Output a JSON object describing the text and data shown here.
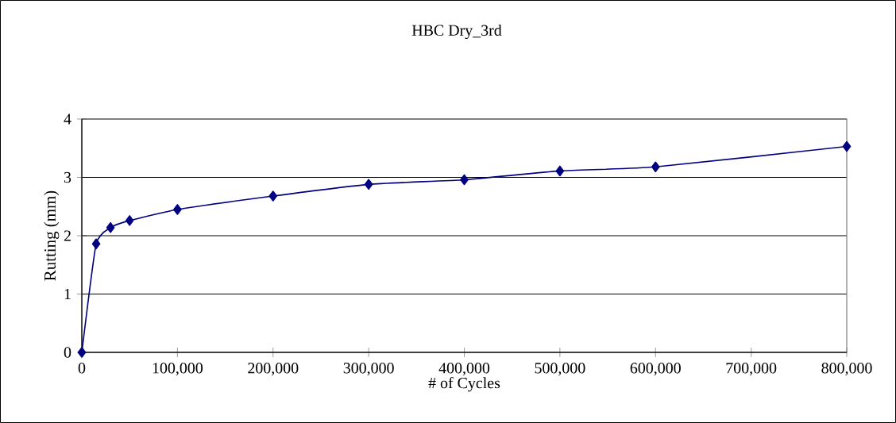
{
  "chart_data": {
    "type": "line",
    "title": "HBC Dry_3rd",
    "xlabel": "# of Cycles",
    "ylabel": "Rutting (mm)",
    "x": [
      0,
      15000,
      30000,
      50000,
      100000,
      200000,
      300000,
      400000,
      500000,
      600000,
      800000
    ],
    "series": [
      {
        "color": "#000080",
        "values": [
          0,
          1.86,
          2.14,
          2.26,
          2.45,
          2.68,
          2.88,
          2.96,
          3.11,
          3.18,
          3.53
        ]
      }
    ],
    "xlim": [
      0,
      800000
    ],
    "ylim": [
      0,
      4
    ],
    "xticks": [
      0,
      {
        "value": 100000,
        "label": "100,000"
      },
      {
        "value": 200000,
        "label": "200,000"
      },
      {
        "value": 300000,
        "label": "300,000"
      },
      {
        "value": 400000,
        "label": "400,000"
      },
      {
        "value": 500000,
        "label": "500,000"
      },
      {
        "value": 600000,
        "label": "600,000"
      },
      {
        "value": 700000,
        "label": "700,000"
      },
      {
        "value": 800000,
        "label": "800,000"
      }
    ],
    "yticks": [
      0,
      1,
      2,
      3,
      4
    ],
    "grid": "y",
    "marker": "diamond",
    "line_style": "solid"
  }
}
